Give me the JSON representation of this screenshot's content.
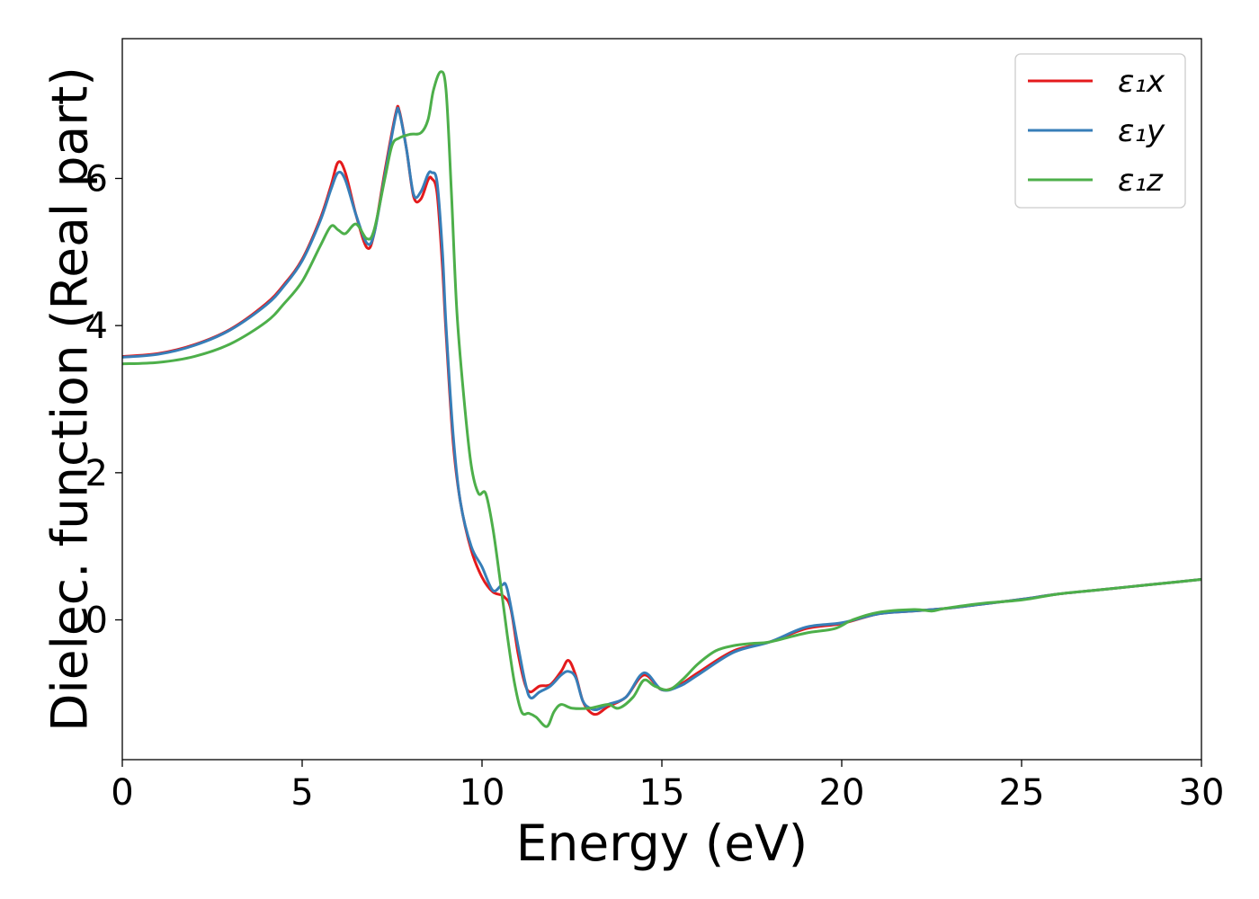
{
  "chart_data": {
    "type": "line",
    "xlabel": "Energy (eV)",
    "ylabel": "Dielec. function (Real part)",
    "xlim": [
      0,
      30
    ],
    "ylim": [
      -1.9,
      7.9
    ],
    "xticks": [
      0,
      5,
      10,
      15,
      20,
      25,
      30
    ],
    "xtick_labels": [
      "0",
      "5",
      "10",
      "15",
      "20",
      "25",
      "30"
    ],
    "yticks": [
      0,
      2,
      4,
      6
    ],
    "ytick_labels": [
      "0",
      "2",
      "4",
      "6"
    ],
    "grid": false,
    "legend_position": "top-right",
    "series": [
      {
        "name": "ε₁x",
        "color": "#e41a1c",
        "x": [
          0,
          1,
          2,
          3,
          4,
          4.5,
          5,
          5.5,
          5.8,
          6.0,
          6.2,
          6.5,
          6.8,
          7.0,
          7.3,
          7.6,
          7.7,
          7.9,
          8.1,
          8.3,
          8.5,
          8.6,
          8.75,
          8.9,
          9.0,
          9.2,
          9.4,
          9.7,
          10.0,
          10.3,
          10.6,
          10.8,
          11.0,
          11.2,
          11.35,
          11.6,
          11.9,
          12.2,
          12.4,
          12.6,
          12.8,
          13.0,
          13.2,
          13.5,
          14.0,
          14.5,
          15.0,
          15.5,
          16.0,
          17.0,
          18.0,
          19.0,
          20.0,
          21.0,
          22.0,
          23.0,
          24.0,
          25.0,
          26.0,
          27.0,
          28.0,
          29.0,
          30.0
        ],
        "y": [
          3.58,
          3.62,
          3.74,
          3.95,
          4.3,
          4.56,
          4.9,
          5.45,
          5.9,
          6.22,
          6.08,
          5.5,
          5.06,
          5.25,
          6.1,
          6.88,
          6.92,
          6.4,
          5.75,
          5.72,
          5.98,
          6.0,
          5.8,
          4.8,
          3.9,
          2.4,
          1.6,
          0.95,
          0.58,
          0.38,
          0.32,
          0.15,
          -0.45,
          -0.88,
          -0.98,
          -0.9,
          -0.88,
          -0.7,
          -0.55,
          -0.75,
          -1.1,
          -1.25,
          -1.28,
          -1.18,
          -1.05,
          -0.75,
          -0.95,
          -0.88,
          -0.72,
          -0.42,
          -0.3,
          -0.12,
          -0.05,
          0.08,
          0.12,
          0.16,
          0.22,
          0.28,
          0.35,
          0.4,
          0.45,
          0.5,
          0.55
        ]
      },
      {
        "name": "ε₁y",
        "color": "#377eb8",
        "x": [
          0,
          1,
          2,
          3,
          4,
          4.5,
          5,
          5.5,
          5.8,
          6.0,
          6.2,
          6.5,
          6.8,
          7.0,
          7.3,
          7.6,
          7.7,
          7.9,
          8.1,
          8.3,
          8.5,
          8.6,
          8.75,
          8.9,
          9.0,
          9.2,
          9.4,
          9.7,
          10.0,
          10.3,
          10.55,
          10.7,
          11.0,
          11.2,
          11.35,
          11.6,
          11.9,
          12.2,
          12.4,
          12.6,
          12.8,
          13.0,
          13.2,
          13.5,
          14.0,
          14.5,
          15.0,
          15.5,
          16.0,
          17.0,
          18.0,
          19.0,
          20.0,
          21.0,
          22.0,
          23.0,
          24.0,
          25.0,
          26.0,
          27.0,
          28.0,
          29.0,
          30.0
        ],
        "y": [
          3.57,
          3.61,
          3.73,
          3.94,
          4.28,
          4.54,
          4.88,
          5.42,
          5.85,
          6.08,
          5.98,
          5.5,
          5.12,
          5.25,
          6.05,
          6.85,
          6.9,
          6.4,
          5.78,
          5.82,
          6.06,
          6.08,
          5.95,
          5.0,
          4.0,
          2.5,
          1.6,
          1.0,
          0.72,
          0.4,
          0.47,
          0.42,
          -0.35,
          -0.85,
          -1.06,
          -0.98,
          -0.9,
          -0.75,
          -0.7,
          -0.78,
          -1.1,
          -1.2,
          -1.22,
          -1.15,
          -1.05,
          -0.72,
          -0.95,
          -0.9,
          -0.75,
          -0.44,
          -0.3,
          -0.1,
          -0.04,
          0.08,
          0.12,
          0.16,
          0.22,
          0.28,
          0.35,
          0.4,
          0.45,
          0.5,
          0.55
        ]
      },
      {
        "name": "ε₁z",
        "color": "#4daf4a",
        "x": [
          0,
          1,
          2,
          3,
          4,
          4.5,
          5,
          5.5,
          5.8,
          6.0,
          6.2,
          6.5,
          6.8,
          7.0,
          7.3,
          7.5,
          7.7,
          8.0,
          8.3,
          8.5,
          8.65,
          8.85,
          9.0,
          9.15,
          9.3,
          9.5,
          9.7,
          9.9,
          10.1,
          10.3,
          10.5,
          10.7,
          10.9,
          11.1,
          11.3,
          11.5,
          11.8,
          12.0,
          12.2,
          12.5,
          13.0,
          13.5,
          13.8,
          14.2,
          14.5,
          14.8,
          15.2,
          15.6,
          16.0,
          16.5,
          17.0,
          17.5,
          18.0,
          19.0,
          19.8,
          20.3,
          21.0,
          22.0,
          22.5,
          22.8,
          23.5,
          24.0,
          25.0,
          26.0,
          27.0,
          28.0,
          29.0,
          30.0
        ],
        "y": [
          3.48,
          3.5,
          3.58,
          3.75,
          4.05,
          4.3,
          4.6,
          5.08,
          5.35,
          5.3,
          5.25,
          5.38,
          5.18,
          5.3,
          6.0,
          6.45,
          6.55,
          6.6,
          6.62,
          6.8,
          7.2,
          7.45,
          7.2,
          5.8,
          4.2,
          3.0,
          2.1,
          1.72,
          1.72,
          1.25,
          0.55,
          -0.2,
          -0.85,
          -1.25,
          -1.27,
          -1.32,
          -1.45,
          -1.25,
          -1.15,
          -1.2,
          -1.2,
          -1.15,
          -1.2,
          -1.05,
          -0.82,
          -0.9,
          -0.95,
          -0.8,
          -0.6,
          -0.42,
          -0.35,
          -0.32,
          -0.3,
          -0.18,
          -0.12,
          0.0,
          0.1,
          0.14,
          0.12,
          0.15,
          0.2,
          0.23,
          0.27,
          0.35,
          0.4,
          0.45,
          0.5,
          0.55
        ]
      }
    ]
  }
}
